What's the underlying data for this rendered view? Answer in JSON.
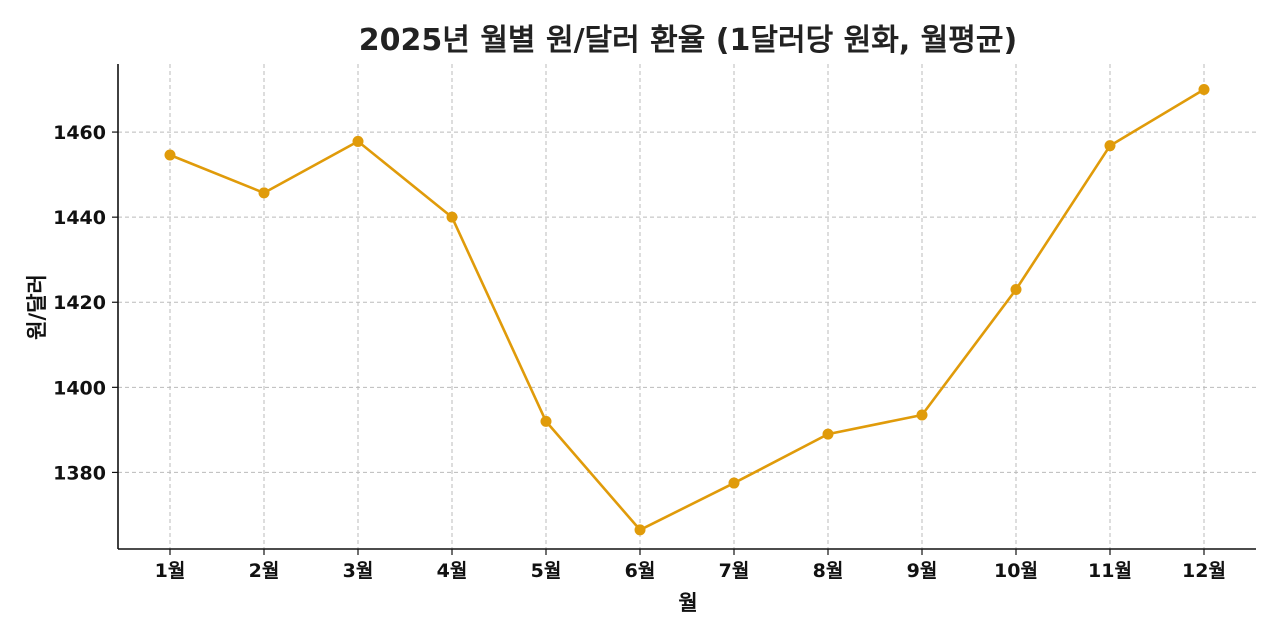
{
  "chart_data": {
    "type": "line",
    "title": "2025년 월별 원/달러 환율 (1달러당 원화, 월평균)",
    "xlabel": "월",
    "ylabel": "원/달러",
    "categories": [
      "1월",
      "2월",
      "3월",
      "4월",
      "5월",
      "6월",
      "7월",
      "8월",
      "9월",
      "10월",
      "11월",
      "12월"
    ],
    "series": [
      {
        "values": [
          1454.6,
          1445.7,
          1457.8,
          1440.0,
          1392.0,
          1366.5,
          1377.5,
          1389.0,
          1393.5,
          1423.0,
          1456.8,
          1470.0
        ],
        "color": "#e09b0a"
      }
    ],
    "yticks": [
      1380,
      1400,
      1420,
      1440,
      1460
    ],
    "ylim": [
      1362,
      1476
    ],
    "grid": true,
    "marker": "circle"
  }
}
